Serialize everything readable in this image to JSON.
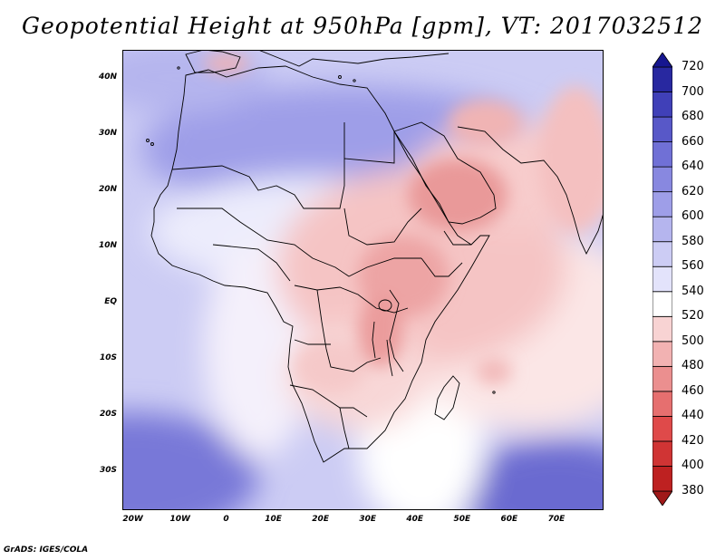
{
  "title": "Geopotential Height at 950hPa [gpm], VT: 2017032512",
  "credit": "GrADS: IGES/COLA",
  "map": {
    "lon_labels": [
      "20W",
      "10W",
      "0",
      "10E",
      "20E",
      "30E",
      "40E",
      "50E",
      "60E",
      "70E"
    ],
    "lat_labels": [
      "40N",
      "30N",
      "20N",
      "10N",
      "EQ",
      "10S",
      "20S",
      "30S"
    ],
    "lon_range": [
      -22,
      80
    ],
    "lat_range": [
      -37,
      45
    ]
  },
  "colorbar": {
    "levels": [
      380,
      400,
      420,
      440,
      460,
      480,
      500,
      520,
      540,
      560,
      580,
      600,
      620,
      640,
      660,
      680,
      700,
      720
    ],
    "colors": [
      "#a01919",
      "#be2121",
      "#d03434",
      "#df4a4a",
      "#e66f6f",
      "#eb8f8f",
      "#f2b2b2",
      "#f8d3d3",
      "#ffffff",
      "#e3e3fb",
      "#ccccf4",
      "#b5b5ee",
      "#9e9ee8",
      "#8888e0",
      "#7070d6",
      "#5858c8",
      "#4040b8",
      "#2828a0",
      "#161690"
    ]
  },
  "colors": {
    "land_outline": "#000000",
    "ocean_low": "#ffffff"
  }
}
